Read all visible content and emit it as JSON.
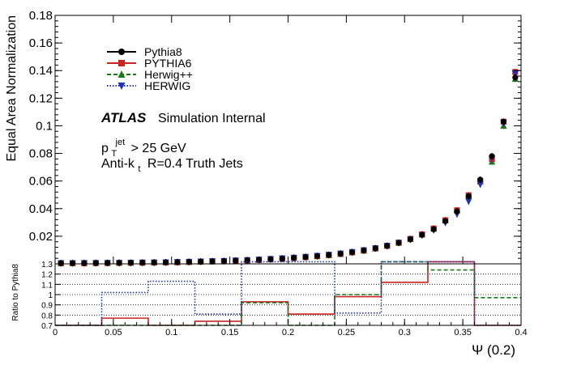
{
  "chart_data": [
    {
      "type": "scatter",
      "ylabel": "Equal Area Normalization",
      "xlim": [
        0,
        0.4
      ],
      "ylim": [
        0,
        0.18
      ],
      "y_ticks": [
        "0.02",
        "0.04",
        "0.06",
        "0.08",
        "0.1",
        "0.12",
        "0.14",
        "0.16",
        "0.18"
      ],
      "x": [
        0.005,
        0.015,
        0.025,
        0.035,
        0.045,
        0.055,
        0.065,
        0.075,
        0.085,
        0.095,
        0.105,
        0.115,
        0.125,
        0.135,
        0.145,
        0.155,
        0.165,
        0.175,
        0.185,
        0.195,
        0.205,
        0.215,
        0.225,
        0.235,
        0.245,
        0.255,
        0.265,
        0.275,
        0.285,
        0.295,
        0.305,
        0.315,
        0.325,
        0.335,
        0.345,
        0.355,
        0.365,
        0.375,
        0.385,
        0.395
      ],
      "series": [
        {
          "name": "Pythia8",
          "color": "#000000",
          "marker": "circle",
          "line": "solid",
          "values": [
            0.0005,
            0.0005,
            0.0005,
            0.0006,
            0.0006,
            0.0007,
            0.0008,
            0.0009,
            0.001,
            0.0011,
            0.0012,
            0.0014,
            0.0016,
            0.0018,
            0.002,
            0.0023,
            0.0026,
            0.0029,
            0.0033,
            0.0038,
            0.0043,
            0.0049,
            0.0056,
            0.0064,
            0.0073,
            0.0084,
            0.0097,
            0.0112,
            0.013,
            0.0152,
            0.0178,
            0.021,
            0.025,
            0.031,
            0.038,
            0.049,
            0.061,
            0.078,
            0.103,
            0.135
          ]
        },
        {
          "name": "PYTHIA6",
          "color": "#cc2222",
          "marker": "square",
          "line": "solid",
          "values": [
            0.0005,
            0.0005,
            0.0005,
            0.0006,
            0.0006,
            0.0007,
            0.0008,
            0.0009,
            0.001,
            0.0011,
            0.0012,
            0.0014,
            0.0016,
            0.0018,
            0.002,
            0.0023,
            0.0026,
            0.0029,
            0.0033,
            0.0038,
            0.0043,
            0.0049,
            0.0056,
            0.0064,
            0.0073,
            0.0084,
            0.0097,
            0.0112,
            0.0131,
            0.0154,
            0.0181,
            0.0214,
            0.0256,
            0.0316,
            0.0388,
            0.0497,
            0.0598,
            0.076,
            0.103,
            0.139
          ]
        },
        {
          "name": "Herwig++",
          "color": "#1a7a1a",
          "marker": "triangle-up",
          "line": "dashed",
          "values": [
            0.0004,
            0.0004,
            0.0005,
            0.0005,
            0.0006,
            0.0007,
            0.0007,
            0.0008,
            0.0009,
            0.001,
            0.0011,
            0.0013,
            0.0015,
            0.0017,
            0.0019,
            0.0022,
            0.0025,
            0.0028,
            0.0032,
            0.0037,
            0.0042,
            0.0048,
            0.0055,
            0.0063,
            0.0072,
            0.0083,
            0.0096,
            0.0111,
            0.013,
            0.0152,
            0.0179,
            0.0212,
            0.0254,
            0.0314,
            0.0385,
            0.0493,
            0.0597,
            0.074,
            0.1,
            0.134
          ]
        },
        {
          "name": "HERWIG",
          "color": "#2233bb",
          "marker": "triangle-down",
          "line": "dotted",
          "values": [
            0.0005,
            0.0005,
            0.0006,
            0.0006,
            0.0007,
            0.0007,
            0.0008,
            0.0009,
            0.001,
            0.0011,
            0.0013,
            0.0015,
            0.0017,
            0.0019,
            0.0021,
            0.0024,
            0.0027,
            0.0031,
            0.0035,
            0.004,
            0.0045,
            0.0051,
            0.0058,
            0.0066,
            0.0075,
            0.0086,
            0.0098,
            0.0113,
            0.0131,
            0.0152,
            0.0176,
            0.0207,
            0.0245,
            0.0298,
            0.036,
            0.0452,
            0.0575,
            0.0765,
            0.102,
            0.138
          ]
        }
      ],
      "annotations": {
        "atlas": "ATLAS",
        "atlas_tag": "Simulation Internal",
        "pt_cut_p": "p",
        "pt_cut_sub": "T",
        "pt_cut_sup": "jet",
        "pt_cut_rest": "> 25 GeV",
        "jets_pre": "Anti-k",
        "jets_sub": "t",
        "jets_post": "R=0.4 Truth Jets"
      }
    },
    {
      "type": "line",
      "xlabel": "Ψ (0.2)",
      "ylabel": "Ratio to Pythia8",
      "xlim": [
        0,
        0.4
      ],
      "ylim": [
        0.7,
        1.3
      ],
      "grid": true,
      "x_ticks": [
        "0",
        "0.05",
        "0.1",
        "0.15",
        "0.2",
        "0.25",
        "0.3",
        "0.35",
        "0.4"
      ],
      "y_ticks": [
        "0.7",
        "0.8",
        "0.9",
        "1",
        "1.1",
        "1.2",
        "1.3"
      ],
      "bin_edges": [
        0,
        0.04,
        0.08,
        0.12,
        0.16,
        0.2,
        0.24,
        0.28,
        0.32,
        0.36,
        0.4
      ],
      "series": [
        {
          "name": "PYTHIA6",
          "color": "#cc2222",
          "line": "solid",
          "values": [
            0.7,
            0.77,
            0.7,
            0.74,
            0.93,
            0.81,
            0.98,
            1.12,
            1.32,
            0.7
          ]
        },
        {
          "name": "Herwig++",
          "color": "#1a7a1a",
          "line": "dashed",
          "values": [
            0.7,
            0.7,
            0.7,
            0.7,
            0.92,
            0.7,
            1.0,
            1.32,
            1.24,
            0.97
          ]
        },
        {
          "name": "HERWIG",
          "color": "#2233bb",
          "line": "dotted",
          "values": [
            0.7,
            1.02,
            1.13,
            0.81,
            1.32,
            1.32,
            0.82,
            1.32,
            1.32,
            0.7
          ]
        }
      ]
    }
  ]
}
